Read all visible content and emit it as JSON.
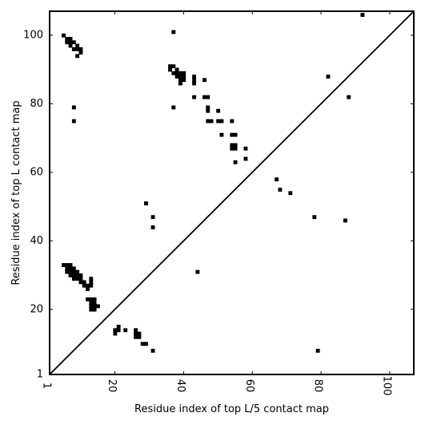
{
  "chart_data": {
    "type": "scatter",
    "title": "",
    "xlabel": "Residue index of top L/5 contact map",
    "ylabel": "Residue index of top L contact map",
    "xlim": [
      1,
      107
    ],
    "ylim": [
      1,
      107
    ],
    "x_ticks": [
      1,
      20,
      40,
      60,
      80,
      100
    ],
    "y_ticks": [
      1,
      20,
      40,
      60,
      80,
      100
    ],
    "x_tick_labels": [
      "1",
      "20",
      "40",
      "60",
      "80",
      "100"
    ],
    "y_tick_labels": [
      "1",
      "20",
      "40",
      "60",
      "80",
      "100"
    ],
    "grid": false,
    "marker": "square",
    "marker_color": "#000000",
    "diagonal_line": true,
    "series": [
      {
        "x": [
          5,
          6,
          6,
          7,
          7,
          7,
          8,
          8,
          9,
          9,
          9,
          10,
          10,
          37,
          36,
          36,
          37,
          37,
          38,
          38,
          38,
          39,
          39,
          39,
          39,
          40,
          40,
          40,
          43,
          43,
          43,
          46,
          46,
          47,
          47,
          47,
          48,
          50,
          43,
          50,
          51,
          51,
          54,
          55,
          54,
          54,
          55,
          55,
          58,
          58,
          55,
          92,
          82,
          88,
          8,
          8,
          37,
          47,
          54,
          5,
          6,
          6,
          6,
          7,
          7,
          7,
          7,
          8,
          8,
          8,
          8,
          9,
          9,
          9,
          10,
          10,
          10,
          11,
          11,
          12,
          12,
          12,
          13,
          13,
          13,
          13,
          13,
          13,
          14,
          14,
          14,
          14,
          15,
          13,
          20,
          20,
          21,
          21,
          23,
          26,
          26,
          26,
          27,
          27,
          28,
          29,
          31,
          79,
          29,
          31,
          31,
          44,
          67,
          68,
          71,
          78,
          87
        ],
        "y": [
          100,
          99,
          98,
          99,
          98,
          97,
          98,
          96,
          97,
          96,
          94,
          96,
          95,
          101,
          91,
          90,
          91,
          89,
          90,
          89,
          88,
          89,
          88,
          87,
          86,
          89,
          88,
          87,
          88,
          87,
          86,
          87,
          82,
          82,
          79,
          78,
          75,
          78,
          82,
          75,
          75,
          71,
          71,
          71,
          68,
          67,
          68,
          67,
          67,
          64,
          63,
          106,
          88,
          82,
          79,
          75,
          79,
          75,
          75,
          33,
          33,
          32,
          31,
          33,
          32,
          31,
          30,
          32,
          31,
          30,
          29,
          31,
          30,
          29,
          30,
          29,
          28,
          28,
          27,
          27,
          26,
          23,
          29,
          28,
          27,
          23,
          22,
          21,
          23,
          22,
          21,
          20,
          21,
          20,
          14,
          13,
          15,
          14,
          14,
          14,
          13,
          12,
          13,
          12,
          10,
          10,
          8,
          8,
          51,
          47,
          44,
          31,
          58,
          55,
          54,
          47,
          46
        ]
      }
    ]
  }
}
